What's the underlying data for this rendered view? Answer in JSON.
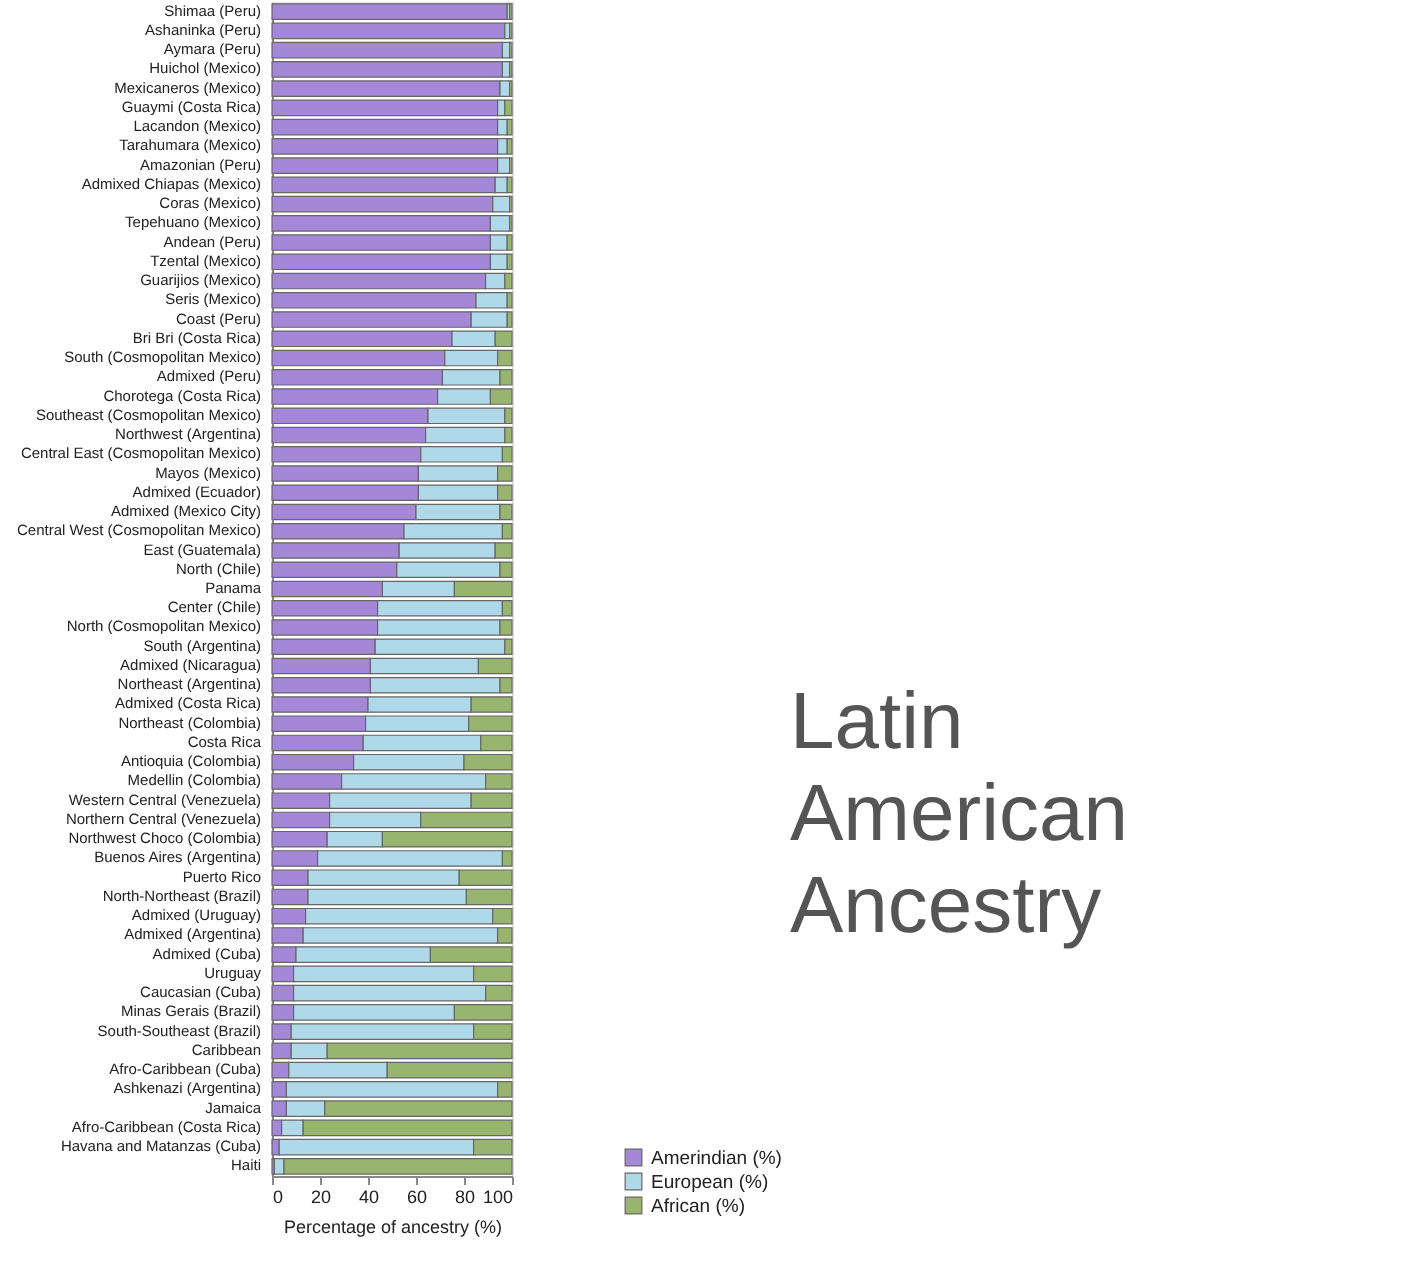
{
  "chart_data": {
    "type": "bar",
    "orientation": "horizontal",
    "stacked": true,
    "title": "Latin American Ancestry",
    "xlabel": "Percentage of ancestry (%)",
    "categories": [
      "Shimaa (Peru)",
      "Ashaninka (Peru)",
      "Aymara (Peru)",
      "Huichol (Mexico)",
      "Mexicaneros  (Mexico)",
      "Guaymi (Costa Rica)",
      "Lacandon  (Mexico)",
      "Tarahumara  (Mexico)",
      "Amazonian (Peru)",
      "Admixed Chiapas (Mexico)",
      "Coras (Mexico)",
      "Tepehuano (Mexico)",
      "Andean (Peru)",
      "Tzental (Mexico)",
      "Guarijios (Mexico)",
      "Seris (Mexico)",
      "Coast (Peru)",
      "Bri Bri (Costa Rica)",
      "South (Cosmopolitan Mexico)",
      "Admixed (Peru)",
      "Chorotega (Costa Rica)",
      "Southeast (Cosmopolitan Mexico)",
      "Northwest (Argentina)",
      "Central East (Cosmopolitan Mexico)",
      "Mayos (Mexico)",
      "Admixed (Ecuador)",
      "Admixed (Mexico City)",
      "Central West (Cosmopolitan Mexico)",
      "East (Guatemala)",
      "North (Chile)",
      "Panama",
      "Center (Chile)",
      "North (Cosmopolitan Mexico)",
      "South (Argentina)",
      "Admixed (Nicaragua)",
      "Northeast (Argentina)",
      "Admixed (Costa Rica)",
      "Northeast (Colombia)",
      "Costa Rica",
      "Antioquia (Colombia)",
      "Medellin (Colombia)",
      "Western Central (Venezuela)",
      "Northern Central (Venezuela)",
      "Northwest Choco (Colombia)",
      "Buenos Aires (Argentina)",
      "Puerto Rico",
      "North-Northeast (Brazil)",
      "Admixed (Uruguay)",
      "Admixed (Argentina)",
      "Admixed (Cuba)",
      "Uruguay",
      "Caucasian (Cuba)",
      "Minas Gerais (Brazil)",
      "South-Southeast (Brazil)",
      "Caribbean",
      "Afro-Caribbean (Cuba)",
      "Ashkenazi (Argentina)",
      "Jamaica",
      "Afro-Caribbean (Costa Rica)",
      "Havana and Matanzas (Cuba)",
      "Haiti"
    ],
    "series": [
      {
        "name": "Amerindian (%)",
        "color": "#a587d8",
        "values": [
          98,
          97,
          96,
          96,
          95,
          94,
          94,
          94,
          94,
          93,
          92,
          91,
          91,
          91,
          89,
          85,
          83,
          75,
          72,
          71,
          69,
          65,
          64,
          62,
          61,
          61,
          60,
          55,
          53,
          52,
          46,
          44,
          44,
          43,
          41,
          41,
          40,
          39,
          38,
          34,
          29,
          24,
          24,
          23,
          19,
          15,
          15,
          14,
          13,
          10,
          9,
          9,
          9,
          8,
          8,
          7,
          6,
          6,
          4,
          3,
          1
        ]
      },
      {
        "name": "European (%)",
        "color": "#afd8e8",
        "values": [
          1,
          2,
          3,
          3,
          4,
          3,
          4,
          4,
          5,
          5,
          7,
          8,
          7,
          7,
          8,
          13,
          15,
          18,
          22,
          24,
          22,
          32,
          33,
          34,
          33,
          33,
          35,
          41,
          40,
          43,
          30,
          52,
          51,
          54,
          45,
          54,
          43,
          43,
          49,
          46,
          60,
          59,
          38,
          23,
          77,
          63,
          66,
          78,
          81,
          56,
          75,
          80,
          67,
          76,
          15,
          41,
          88,
          16,
          9,
          81,
          4
        ]
      },
      {
        "name": "African (%)",
        "color": "#98b570",
        "values": [
          1,
          1,
          1,
          1,
          1,
          3,
          2,
          2,
          1,
          2,
          1,
          1,
          2,
          2,
          3,
          2,
          2,
          7,
          6,
          5,
          9,
          3,
          3,
          4,
          6,
          6,
          5,
          4,
          7,
          5,
          24,
          4,
          5,
          3,
          14,
          5,
          17,
          18,
          13,
          20,
          11,
          17,
          38,
          54,
          4,
          22,
          19,
          8,
          6,
          34,
          16,
          11,
          24,
          16,
          77,
          52,
          6,
          78,
          87,
          16,
          95
        ]
      }
    ],
    "xlim": [
      0,
      100
    ],
    "xticks": [
      0,
      20,
      40,
      60,
      80,
      100
    ],
    "grid": false,
    "legend": "bottom right"
  }
}
